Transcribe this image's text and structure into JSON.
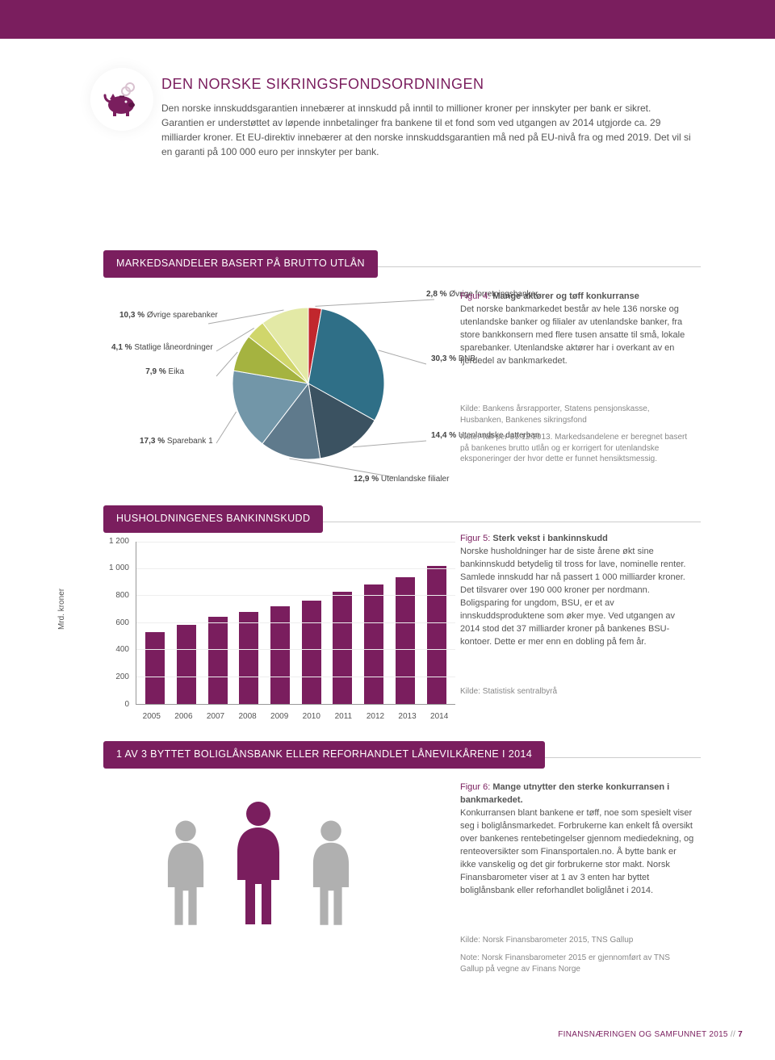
{
  "colors": {
    "brand": "#7a1e5e",
    "text": "#555555",
    "muted": "#888888"
  },
  "intro": {
    "title": "DEN NORSKE SIKRINGSFONDSORDNINGEN",
    "body": "Den norske innskuddsgarantien innebærer at innskudd på inntil to millioner kroner per innskyter per bank er sikret. Garantien er understøttet av løpende innbetalinger fra bankene til et fond som ved utgangen av 2014 utgjorde ca. 29 milliarder kroner. Et EU-direktiv innebærer at den norske innskuddsgarantien må ned på EU-nivå fra og med 2019. Det vil si en garanti på 100 000 euro per innskyter per bank."
  },
  "pie": {
    "header": "MARKEDSANDELER BASERT PÅ BRUTTO UTLÅN",
    "type": "pie",
    "slices": [
      {
        "label": "Øvrige forretningsbanker",
        "pct": 2.8,
        "color": "#c1272d"
      },
      {
        "label": "DNB",
        "pct": 30.3,
        "color": "#2f6f87"
      },
      {
        "label": "Utenlandske datterbanker",
        "pct": 14.4,
        "color": "#3b5261"
      },
      {
        "label": "Utenlandske filialer",
        "pct": 12.9,
        "color": "#5f7a8c"
      },
      {
        "label": "Sparebank 1",
        "pct": 17.3,
        "color": "#7296a8"
      },
      {
        "label": "Eika",
        "pct": 7.9,
        "color": "#a5b340"
      },
      {
        "label": "Statlige låneordninger",
        "pct": 4.1,
        "color": "#d0d66b"
      },
      {
        "label": "Øvrige sparebanker",
        "pct": 10.3,
        "color": "#e3e9a6"
      }
    ],
    "start_angle_deg": -90,
    "background": "#ffffff"
  },
  "fig4": {
    "label": "Figur 4: ",
    "title": "Mange aktører og tøff konkurranse",
    "body": "Det norske bankmarkedet består av hele 136 norske og utenlandske banker og filialer av utenlandske banker, fra store bankkonsern med flere tusen ansatte til små, lokale sparebanker. Utenlandske aktører har i overkant av en fjerdedel av bankmarkedet.",
    "source": "Kilde: Bankens årsrapporter, Statens pensjonskasse, Husbanken, Bankenes sikringsfond",
    "note": "Note: Tall per 31.12.2013. Markedsandelene er beregnet basert på bankenes brutto utlån og er korrigert for utenlandske eksponeringer der hvor dette er funnet hensiktsmessig."
  },
  "bar": {
    "header": "HUSHOLDNINGENES BANKINNSKUDD",
    "type": "bar",
    "ylabel": "Mrd. kroner",
    "ylim": [
      0,
      1200
    ],
    "ytick_step": 200,
    "categories": [
      "2005",
      "2006",
      "2007",
      "2008",
      "2009",
      "2010",
      "2011",
      "2012",
      "2013",
      "2014"
    ],
    "values": [
      530,
      580,
      640,
      680,
      720,
      760,
      825,
      880,
      935,
      1020
    ],
    "bar_color": "#7a1e5e",
    "grid_color": "#eeeeee",
    "axis_color": "#999999"
  },
  "fig5": {
    "label": "Figur 5: ",
    "title": "Sterk vekst i bankinnskudd",
    "body": "Norske husholdninger har de siste årene økt sine bankinnskudd betydelig til tross for lave, nominelle renter. Samlede innskudd har nå passert 1 000 milliarder kroner. Det tilsvarer over 190 000 kroner per nordmann. Boligsparing for ungdom, BSU, er et av innskuddsproduktene som øker mye. Ved utgangen av 2014 stod det 37 milliarder kroner på bankenes BSU-kontoer. Dette er mer enn en dobling på fem år.",
    "source": "Kilde: Statistisk sentralbyrå"
  },
  "bottom": {
    "header": "1 AV 3 BYTTET BOLIGLÅNSBANK ELLER REFORHANDLET LÅNEVILKÅRENE I 2014",
    "people_colors": [
      "#b0b0b0",
      "#7a1e5e",
      "#b0b0b0"
    ]
  },
  "fig6": {
    "label": "Figur 6: ",
    "title": "Mange utnytter den sterke konkurransen i bankmarkedet.",
    "body": "Konkurransen blant bankene er tøff, noe som spesielt viser seg i boliglånsmarkedet. Forbrukerne kan enkelt få oversikt over bankenes rentebetingelser gjennom mediedekning, og renteoversikter som Finansportalen.no. Å bytte bank er ikke vanskelig og det gir forbrukerne stor makt. Norsk Finansbarometer viser at 1 av 3 enten har byttet boliglånsbank eller reforhandlet boliglånet i 2014.",
    "source": "Kilde: Norsk Finansbarometer 2015, TNS Gallup",
    "note": "Note: Norsk Finansbarometer 2015 er gjennomført av TNS Gallup på vegne av Finans Norge"
  },
  "footer": {
    "text": "FINANSNÆRINGEN OG SAMFUNNET 2015",
    "sep": " // ",
    "page": "7"
  }
}
